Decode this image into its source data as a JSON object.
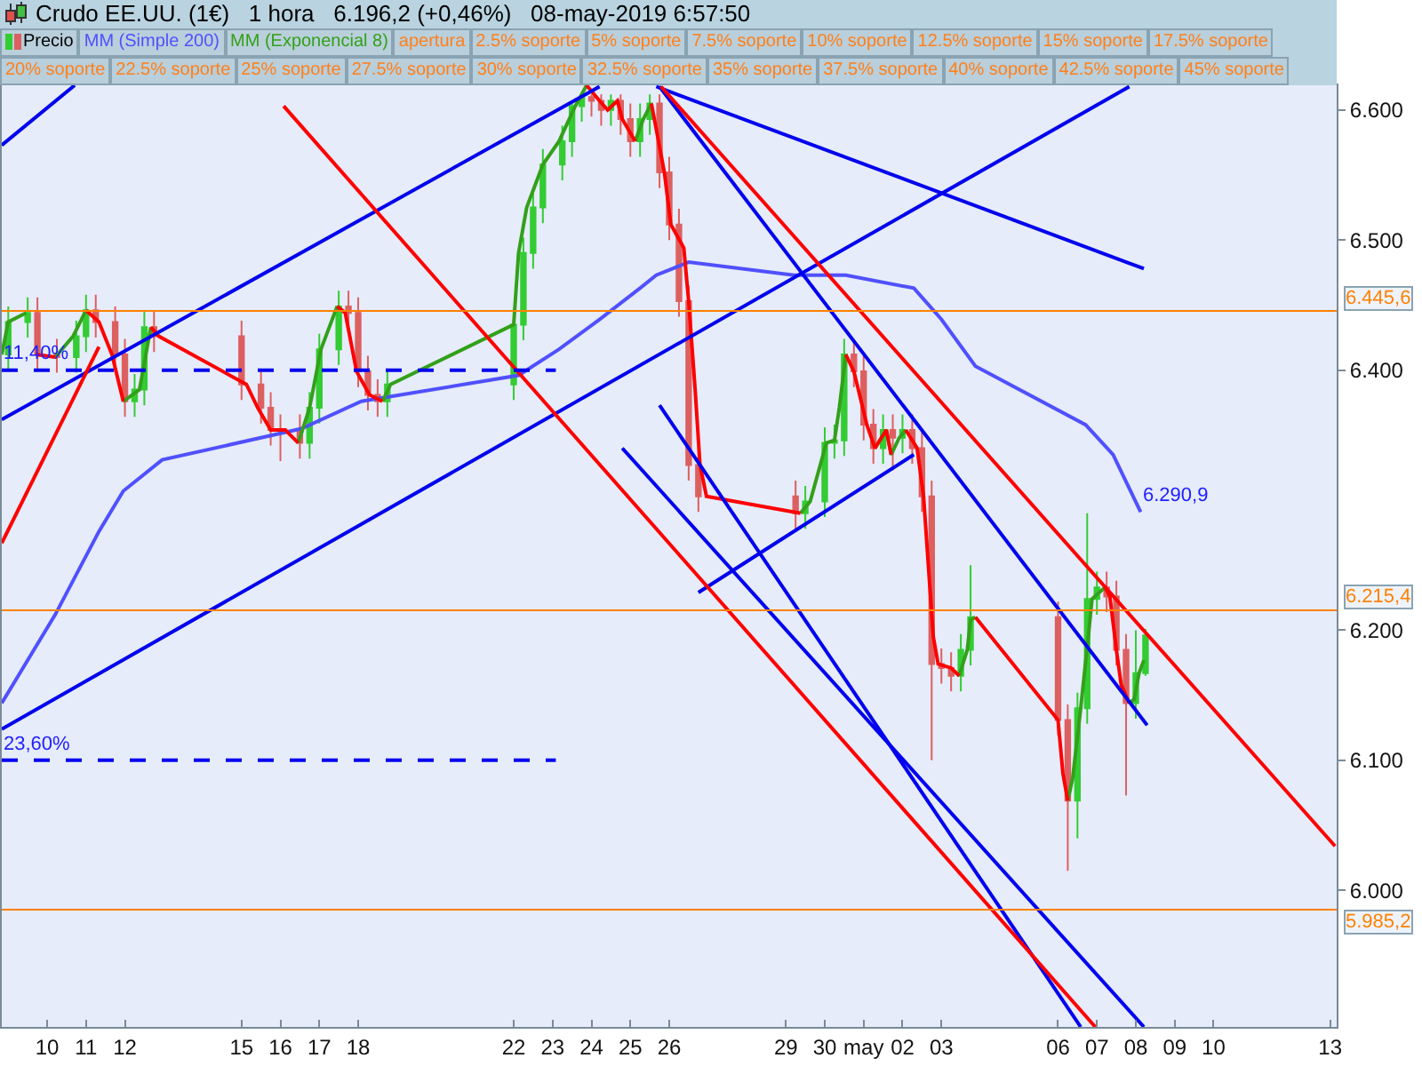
{
  "chart_data": {
    "type": "candlestick",
    "title": "Crudo EE.UU. (1€)   1 hora   6.196,2 (+0,46%)   08-may-2019 6:57:50",
    "legend": "top left",
    "xlim": [
      "2019-04-08T20:00",
      "2019-05-13T04:00"
    ],
    "xticks": [
      {
        "value": "2019-04-10",
        "label": "10"
      },
      {
        "value": "2019-04-11",
        "label": "11"
      },
      {
        "value": "2019-04-12",
        "label": "12"
      },
      {
        "value": "2019-04-15",
        "label": "15"
      },
      {
        "value": "2019-04-16",
        "label": "16"
      },
      {
        "value": "2019-04-17",
        "label": "17"
      },
      {
        "value": "2019-04-18",
        "label": "18"
      },
      {
        "value": "2019-04-22",
        "label": "22"
      },
      {
        "value": "2019-04-23",
        "label": "23"
      },
      {
        "value": "2019-04-24",
        "label": "24"
      },
      {
        "value": "2019-04-25",
        "label": "25"
      },
      {
        "value": "2019-04-26",
        "label": "26"
      },
      {
        "value": "2019-04-29",
        "label": "29"
      },
      {
        "value": "2019-04-30",
        "label": "30"
      },
      {
        "value": "2019-05-01",
        "label": "may"
      },
      {
        "value": "2019-05-02",
        "label": "02"
      },
      {
        "value": "2019-05-03",
        "label": "03"
      },
      {
        "value": "2019-05-06",
        "label": "06"
      },
      {
        "value": "2019-05-07",
        "label": "07"
      },
      {
        "value": "2019-05-08",
        "label": "08"
      },
      {
        "value": "2019-05-09",
        "label": "09"
      },
      {
        "value": "2019-05-10",
        "label": "10"
      },
      {
        "value": "2019-05-13",
        "label": "13"
      }
    ],
    "ylim": [
      5.895,
      6.619
    ],
    "yticks": [
      {
        "value": 6.0,
        "label": "6.000"
      },
      {
        "value": 6.1,
        "label": "6.100"
      },
      {
        "value": 6.2,
        "label": "6.200"
      },
      {
        "value": 6.4,
        "label": "6.400"
      },
      {
        "value": 6.5,
        "label": "6.500"
      },
      {
        "value": 6.6,
        "label": "6.600"
      }
    ],
    "series": [
      {
        "name": "Precio",
        "colors": [
          "#33cc33",
          "#33cc33",
          "#dd6060",
          "#dd6060",
          "#33cc33",
          "#33cc33",
          "#dd6060",
          "#dd6060",
          "#dd6060",
          "#33cc33",
          "#33cc33",
          "#dd6060",
          "#dd6060",
          "#dd6060",
          "#dd6060",
          "#dd6060",
          "#dd6060",
          "#33cc33",
          "#33cc33",
          "#33cc33",
          "#dd6060",
          "#dd6060",
          "#dd6060",
          "#dd6060",
          "#33cc33",
          "#33cc33",
          "#33cc33",
          "#33cc33",
          "#33cc33",
          "#33cc33",
          "#33cc33",
          "#33cc33",
          "#dd6060",
          "#dd6060",
          "#33cc33",
          "#dd6060",
          "#dd6060",
          "#33cc33",
          "#33cc33",
          "#dd6060",
          "#dd6060",
          "#dd6060",
          "#dd6060",
          "#dd6060",
          "#dd6060",
          "#33cc33",
          "#33cc33",
          "#33cc33",
          "#33cc33",
          "#dd6060",
          "#dd6060",
          "#dd6060",
          "#33cc33",
          "#dd6060",
          "#33cc33",
          "#dd6060",
          "#dd6060",
          "#dd6060",
          "#dd6060",
          "#dd6060",
          "#33cc33",
          "#33cc33",
          "#dd6060",
          "#dd6060",
          "#33cc33",
          "#33cc33",
          "#33cc33",
          "#dd6060",
          "#dd6060",
          "#dd6060",
          "#33cc33",
          "#33cc33"
        ],
        "x": [
          "2019-04-09T00:00",
          "2019-04-09T12:00",
          "2019-04-09T18:00",
          "2019-04-10T06:00",
          "2019-04-10T18:00",
          "2019-04-11T00:00",
          "2019-04-11T06:00",
          "2019-04-11T18:00",
          "2019-04-12T00:00",
          "2019-04-12T06:00",
          "2019-04-12T12:00",
          "2019-04-12T18:00",
          "2019-04-15T00:00",
          "2019-04-15T12:00",
          "2019-04-15T18:00",
          "2019-04-16T00:00",
          "2019-04-16T12:00",
          "2019-04-16T18:00",
          "2019-04-17T00:00",
          "2019-04-17T12:00",
          "2019-04-17T18:00",
          "2019-04-18T00:00",
          "2019-04-18T06:00",
          "2019-04-18T12:00",
          "2019-04-18T18:00",
          "2019-04-22T00:00",
          "2019-04-22T06:00",
          "2019-04-22T12:00",
          "2019-04-22T18:00",
          "2019-04-23T06:00",
          "2019-04-23T12:00",
          "2019-04-23T18:00",
          "2019-04-24T00:00",
          "2019-04-24T06:00",
          "2019-04-24T12:00",
          "2019-04-24T18:00",
          "2019-04-25T00:00",
          "2019-04-25T06:00",
          "2019-04-25T12:00",
          "2019-04-25T18:00",
          "2019-04-26T00:00",
          "2019-04-26T06:00",
          "2019-04-26T12:00",
          "2019-04-26T18:00",
          "2019-04-29T06:00",
          "2019-04-29T12:00",
          "2019-04-30T00:00",
          "2019-04-30T06:00",
          "2019-04-30T12:00",
          "2019-04-30T18:00",
          "2019-05-01T00:00",
          "2019-05-01T06:00",
          "2019-05-01T12:00",
          "2019-05-01T18:00",
          "2019-05-02T00:00",
          "2019-05-02T06:00",
          "2019-05-02T12:00",
          "2019-05-02T18:00",
          "2019-05-03T00:00",
          "2019-05-03T06:00",
          "2019-05-03T12:00",
          "2019-05-03T18:00",
          "2019-05-06T00:00",
          "2019-05-06T06:00",
          "2019-05-06T12:00",
          "2019-05-06T18:00",
          "2019-05-07T00:00",
          "2019-05-07T06:00",
          "2019-05-07T12:00",
          "2019-05-07T18:00",
          "2019-05-08T00:00",
          "2019-05-08T06:00"
        ],
        "ohlc": [
          [
            6.412,
            6.449,
            6.4,
            6.437
          ],
          [
            6.437,
            6.456,
            6.425,
            6.444
          ],
          [
            6.444,
            6.456,
            6.4,
            6.412
          ],
          [
            6.412,
            6.424,
            6.398,
            6.41
          ],
          [
            6.41,
            6.438,
            6.398,
            6.426
          ],
          [
            6.426,
            6.458,
            6.414,
            6.446
          ],
          [
            6.446,
            6.458,
            6.425,
            6.437
          ],
          [
            6.437,
            6.449,
            6.4,
            6.412
          ],
          [
            6.412,
            6.424,
            6.364,
            6.376
          ],
          [
            6.376,
            6.397,
            6.364,
            6.385
          ],
          [
            6.385,
            6.445,
            6.373,
            6.433
          ],
          [
            6.433,
            6.445,
            6.414,
            6.426
          ],
          [
            6.426,
            6.438,
            6.377,
            6.389
          ],
          [
            6.389,
            6.401,
            6.359,
            6.371
          ],
          [
            6.371,
            6.383,
            6.342,
            6.354
          ],
          [
            6.354,
            6.366,
            6.33,
            6.354
          ],
          [
            6.354,
            6.366,
            6.332,
            6.344
          ],
          [
            6.344,
            6.383,
            6.332,
            6.371
          ],
          [
            6.371,
            6.428,
            6.359,
            6.416
          ],
          [
            6.416,
            6.461,
            6.404,
            6.449
          ],
          [
            6.449,
            6.461,
            6.432,
            6.444
          ],
          [
            6.444,
            6.456,
            6.387,
            6.399
          ],
          [
            6.399,
            6.411,
            6.369,
            6.381
          ],
          [
            6.381,
            6.393,
            6.364,
            6.376
          ],
          [
            6.376,
            6.401,
            6.364,
            6.389
          ],
          [
            6.389,
            6.447,
            6.377,
            6.435
          ],
          [
            6.435,
            6.502,
            6.423,
            6.49
          ],
          [
            6.49,
            6.537,
            6.478,
            6.525
          ],
          [
            6.525,
            6.57,
            6.513,
            6.558
          ],
          [
            6.558,
            6.588,
            6.546,
            6.576
          ],
          [
            6.576,
            6.605,
            6.564,
            6.603
          ],
          [
            6.603,
            6.612,
            6.591,
            6.61
          ],
          [
            6.61,
            6.612,
            6.595,
            6.607
          ],
          [
            6.607,
            6.612,
            6.588,
            6.6
          ],
          [
            6.6,
            6.612,
            6.588,
            6.607
          ],
          [
            6.607,
            6.612,
            6.581,
            6.593
          ],
          [
            6.593,
            6.605,
            6.564,
            6.576
          ],
          [
            6.576,
            6.605,
            6.564,
            6.593
          ],
          [
            6.593,
            6.612,
            6.581,
            6.605
          ],
          [
            6.605,
            6.612,
            6.54,
            6.552
          ],
          [
            6.552,
            6.564,
            6.5,
            6.512
          ],
          [
            6.512,
            6.524,
            6.441,
            6.453
          ],
          [
            6.453,
            6.465,
            6.315,
            6.327
          ],
          [
            6.327,
            6.339,
            6.291,
            6.303
          ],
          [
            6.303,
            6.315,
            6.278,
            6.29
          ],
          [
            6.29,
            6.311,
            6.278,
            6.299
          ],
          [
            6.299,
            6.356,
            6.287,
            6.344
          ],
          [
            6.344,
            6.358,
            6.332,
            6.346
          ],
          [
            6.346,
            6.424,
            6.334,
            6.412
          ],
          [
            6.412,
            6.424,
            6.387,
            6.399
          ],
          [
            6.399,
            6.411,
            6.346,
            6.358
          ],
          [
            6.358,
            6.37,
            6.328,
            6.34
          ],
          [
            6.34,
            6.366,
            6.328,
            6.354
          ],
          [
            6.354,
            6.366,
            6.323,
            6.348
          ],
          [
            6.348,
            6.366,
            6.336,
            6.354
          ],
          [
            6.354,
            6.366,
            6.328,
            6.34
          ],
          [
            6.34,
            6.352,
            6.291,
            6.303
          ],
          [
            6.303,
            6.315,
            6.1,
            6.174
          ],
          [
            6.174,
            6.186,
            6.159,
            6.171
          ],
          [
            6.171,
            6.183,
            6.153,
            6.165
          ],
          [
            6.165,
            6.197,
            6.153,
            6.185
          ],
          [
            6.185,
            6.25,
            6.173,
            6.21
          ],
          [
            6.21,
            6.222,
            6.119,
            6.131
          ],
          [
            6.131,
            6.143,
            6.015,
            6.069
          ],
          [
            6.069,
            6.152,
            6.04,
            6.14
          ],
          [
            6.14,
            6.29,
            6.128,
            6.224
          ],
          [
            6.224,
            6.245,
            6.212,
            6.233
          ],
          [
            6.233,
            6.245,
            6.214,
            6.226
          ],
          [
            6.226,
            6.238,
            6.173,
            6.185
          ],
          [
            6.185,
            6.197,
            6.073,
            6.144
          ],
          [
            6.144,
            6.2,
            6.132,
            6.167
          ],
          [
            6.167,
            6.201,
            6.165,
            6.196
          ]
        ]
      },
      {
        "name": "MM (Simple 200)",
        "type": "line",
        "color": "#5050ff",
        "x": [
          "2019-04-08T20:00",
          "2019-04-10T05:00",
          "2019-04-11T08:00",
          "2019-04-11T23:00",
          "2019-04-12T23:00",
          "2019-04-16T13:00",
          "2019-04-18T02:00",
          "2019-04-22T03:00",
          "2019-04-23T04:00",
          "2019-04-24T05:00",
          "2019-04-25T06:00",
          "2019-04-25T16:00",
          "2019-04-26T12:00",
          "2019-04-29T05:00",
          "2019-04-30T13:00",
          "2019-05-02T07:00",
          "2019-05-03T00:00",
          "2019-05-03T21:00",
          "2019-05-06T17:00",
          "2019-05-07T10:00",
          "2019-05-08T03:00"
        ],
        "values": [
          6.144,
          6.212,
          6.276,
          6.307,
          6.331,
          6.355,
          6.376,
          6.396,
          6.416,
          6.439,
          6.463,
          6.473,
          6.483,
          6.473,
          6.473,
          6.463,
          6.439,
          6.403,
          6.358,
          6.335,
          6.2909
        ]
      },
      {
        "name": "MM (Exponencial 8)",
        "type": "line",
        "color": "#33a01a",
        "x": [
          "2019-04-08T20:00",
          "2019-04-09T00:00",
          "2019-04-09T11:00",
          "2019-04-09T17:00",
          "2019-04-10T05:00",
          "2019-04-10T16:00",
          "2019-04-11T00:00",
          "2019-04-11T08:00",
          "2019-04-11T16:00",
          "2019-04-11T23:00",
          "2019-04-12T09:00",
          "2019-04-12T16:00",
          "2019-04-12T21:00",
          "2019-04-15T03:00",
          "2019-04-15T10:00",
          "2019-04-15T18:00",
          "2019-04-16T03:00",
          "2019-04-16T11:00",
          "2019-04-16T18:00",
          "2019-04-17T01:00",
          "2019-04-17T11:00",
          "2019-04-17T16:00",
          "2019-04-17T23:00",
          "2019-04-18T07:00",
          "2019-04-18T15:00",
          "2019-04-18T20:00",
          "2019-04-22T00:00",
          "2019-04-22T03:00",
          "2019-04-22T08:00",
          "2019-04-22T18:00",
          "2019-04-23T04:00",
          "2019-04-23T14:00",
          "2019-04-23T21:00",
          "2019-04-24T05:00",
          "2019-04-24T19:00",
          "2019-04-25T03:00",
          "2019-04-25T08:00",
          "2019-04-25T13:00",
          "2019-04-25T21:00",
          "2019-04-26T01:00",
          "2019-04-26T09:00",
          "2019-04-26T12:00",
          "2019-04-26T16:00",
          "2019-04-26T19:00",
          "2019-04-26T23:00",
          "2019-04-29T09:00",
          "2019-04-29T15:00",
          "2019-04-30T01:00",
          "2019-04-30T06:00",
          "2019-04-30T09:00",
          "2019-04-30T13:00",
          "2019-04-30T18:00",
          "2019-05-01T02:00",
          "2019-05-01T07:00",
          "2019-05-01T14:00",
          "2019-05-01T17:00",
          "2019-05-01T22:00",
          "2019-05-02T02:00",
          "2019-05-02T09:00",
          "2019-05-02T13:00",
          "2019-05-02T19:00",
          "2019-05-02T22:00",
          "2019-05-03T06:00",
          "2019-05-03T11:00",
          "2019-05-03T16:00",
          "2019-05-03T18:00",
          "2019-05-03T21:00",
          "2019-05-06T00:00",
          "2019-05-06T03:00",
          "2019-05-06T06:00",
          "2019-05-06T09:00",
          "2019-05-06T14:00",
          "2019-05-06T19:00",
          "2019-05-06T21:00",
          "2019-05-07T05:00",
          "2019-05-07T08:00",
          "2019-05-07T12:00",
          "2019-05-07T15:00",
          "2019-05-07T20:00",
          "2019-05-07T23:00",
          "2019-05-08T02:00",
          "2019-05-08T05:00"
        ],
        "values": [
          6.412,
          6.437,
          6.444,
          null,
          6.41,
          6.426,
          6.446,
          null,
          null,
          6.376,
          6.385,
          6.433,
          null,
          null,
          null,
          null,
          null,
          6.344,
          6.371,
          6.416,
          6.449,
          null,
          null,
          null,
          6.376,
          6.389,
          6.435,
          6.49,
          6.525,
          6.558,
          6.576,
          6.603,
          6.619,
          null,
          null,
          6.576,
          6.593,
          6.605,
          null,
          null,
          null,
          null,
          null,
          null,
          null,
          6.29,
          6.299,
          6.344,
          6.346,
          6.371,
          6.412,
          null,
          null,
          6.34,
          6.354,
          6.335,
          6.348,
          6.354,
          null,
          null,
          null,
          null,
          null,
          6.165,
          6.185,
          6.208,
          6.21,
          null,
          null,
          6.069,
          6.086,
          6.14,
          6.199,
          6.224,
          6.233,
          null,
          null,
          null,
          6.144,
          6.147,
          6.167,
          6.177
        ]
      },
      {
        "type": "line",
        "color": "#ff0000",
        "x": [
          "2019-04-09T17:00",
          "2019-04-10T05:00",
          "2019-04-10T16:00",
          "2019-04-11T00:00",
          "2019-04-11T08:00",
          "2019-04-11T16:00",
          "2019-04-11T23:00",
          "2019-04-12T09:00",
          "2019-04-12T16:00",
          "2019-04-12T21:00",
          "2019-04-15T03:00",
          "2019-04-15T10:00",
          "2019-04-15T18:00",
          "2019-04-16T03:00",
          "2019-04-16T11:00",
          "2019-04-16T18:00",
          "2019-04-17T01:00",
          "2019-04-17T11:00",
          "2019-04-17T16:00",
          "2019-04-17T23:00",
          "2019-04-18T07:00",
          "2019-04-18T15:00",
          "2019-04-18T20:00",
          "2019-04-22T00:00",
          "2019-04-22T03:00",
          "2019-04-22T08:00",
          "2019-04-22T18:00",
          "2019-04-23T04:00",
          "2019-04-23T14:00",
          "2019-04-23T21:00",
          "2019-04-24T05:00",
          "2019-04-24T10:00",
          "2019-04-24T16:00",
          "2019-04-24T19:00",
          "2019-04-25T03:00",
          "2019-04-25T08:00",
          "2019-04-25T13:00",
          "2019-04-25T21:00",
          "2019-04-26T01:00",
          "2019-04-26T09:00",
          "2019-04-26T12:00",
          "2019-04-26T16:00",
          "2019-04-26T19:00",
          "2019-04-26T23:00",
          "2019-04-29T09:00",
          "2019-04-29T15:00",
          "2019-04-30T01:00",
          "2019-04-30T06:00",
          "2019-04-30T09:00",
          "2019-04-30T13:00",
          "2019-04-30T18:00",
          "2019-05-01T02:00",
          "2019-05-01T07:00",
          "2019-05-01T14:00",
          "2019-05-01T17:00",
          "2019-05-01T22:00",
          "2019-05-02T02:00",
          "2019-05-02T09:00",
          "2019-05-02T13:00",
          "2019-05-02T19:00",
          "2019-05-02T22:00",
          "2019-05-03T06:00",
          "2019-05-03T11:00",
          "2019-05-03T16:00",
          "2019-05-03T18:00",
          "2019-05-03T21:00",
          "2019-05-06T00:00",
          "2019-05-06T03:00",
          "2019-05-06T06:00",
          "2019-05-06T09:00",
          "2019-05-06T14:00",
          "2019-05-06T19:00",
          "2019-05-06T21:00",
          "2019-05-07T05:00",
          "2019-05-07T08:00",
          "2019-05-07T12:00",
          "2019-05-07T15:00",
          "2019-05-07T20:00"
        ],
        "values": [
          6.412,
          6.41,
          null,
          6.446,
          6.437,
          6.412,
          6.376,
          null,
          6.433,
          6.426,
          6.389,
          6.371,
          6.354,
          6.354,
          6.344,
          null,
          null,
          6.449,
          6.444,
          6.399,
          6.381,
          6.376,
          null,
          null,
          null,
          null,
          null,
          null,
          null,
          6.619,
          6.607,
          6.6,
          6.607,
          6.593,
          6.576,
          null,
          6.605,
          6.552,
          6.512,
          6.494,
          6.453,
          6.385,
          6.327,
          6.303,
          6.29,
          null,
          null,
          null,
          null,
          6.412,
          6.399,
          6.358,
          6.34,
          6.354,
          6.335,
          null,
          6.354,
          6.34,
          6.303,
          6.195,
          6.174,
          6.171,
          6.165,
          null,
          null,
          6.21,
          6.131,
          6.09,
          6.069,
          null,
          null,
          null,
          null,
          6.233,
          6.226,
          6.185,
          6.158,
          6.144
        ]
      },
      {
        "type": "line",
        "color": "#0000ee",
        "x": [
          "2019-04-08T20:00",
          "2019-04-10T17:00"
        ],
        "values": [
          6.573,
          6.619
        ]
      },
      {
        "type": "line",
        "color": "#0000ee",
        "x": [
          "2019-04-08T20:00",
          "2019-04-24T05:00"
        ],
        "values": [
          6.362,
          6.618
        ]
      },
      {
        "type": "line",
        "color": "#0000ee",
        "x": [
          "2019-04-08T20:00",
          "2019-05-07T20:00"
        ],
        "values": [
          6.124,
          6.618
        ]
      },
      {
        "type": "line",
        "color": "#0000ee",
        "x": [
          "2019-04-25T16:00",
          "2019-05-08T05:00"
        ],
        "values": [
          6.618,
          6.478
        ]
      },
      {
        "type": "line",
        "color": "#0000ee",
        "x": [
          "2019-04-25T18:00",
          "2019-05-08T07:00"
        ],
        "values": [
          6.618,
          6.127
        ]
      },
      {
        "type": "line",
        "color": "#0000ee",
        "x": [
          "2019-04-25T18:00",
          "2019-05-06T14:00"
        ],
        "values": [
          6.373,
          5.895
        ]
      },
      {
        "type": "line",
        "color": "#0000ee",
        "x": [
          "2019-04-24T19:00",
          "2019-05-08T05:00"
        ],
        "values": [
          6.34,
          5.895
        ]
      },
      {
        "type": "line",
        "color": "#0000ee",
        "x": [
          "2019-04-26T18:00",
          "2019-05-02T07:00"
        ],
        "values": [
          6.229,
          6.335
        ]
      },
      {
        "type": "line",
        "color": "#ff0000",
        "x": [
          "2019-04-08T20:00",
          "2019-04-11T08:00"
        ],
        "values": [
          6.267,
          6.418
        ]
      },
      {
        "type": "line",
        "color": "#ff0000",
        "x": [
          "2019-04-16T02:00",
          "2019-05-06T23:00"
        ],
        "values": [
          6.603,
          5.895
        ]
      },
      {
        "type": "line",
        "color": "#ff0000",
        "x": [
          "2019-04-25T19:00",
          "2019-05-13T03:00"
        ],
        "values": [
          6.618,
          6.034
        ]
      },
      {
        "type": "line",
        "color": "#0000ee",
        "line_style": "dashed",
        "x": [
          "2019-04-08T20:00",
          "2019-04-23T02:00"
        ],
        "values": [
          6.4,
          6.4
        ]
      },
      {
        "type": "line",
        "color": "#0000ee",
        "line_style": "dashed",
        "x": [
          "2019-04-08T20:00",
          "2019-04-23T02:00"
        ],
        "values": [
          6.1,
          6.1
        ]
      }
    ],
    "ref_lines": [
      {
        "axis": "y",
        "value": 6.4456,
        "label": "6.445,6",
        "color": "#ff8000"
      },
      {
        "axis": "y",
        "value": 6.2154,
        "label": "6.215,4",
        "color": "#ff8000"
      },
      {
        "axis": "y",
        "value": 5.9852,
        "label": "5.985,2",
        "color": "#ff8000"
      }
    ],
    "annotations": [
      {
        "text": "11,40%",
        "x": "2019-04-08T20:00",
        "y": 6.4
      },
      {
        "text": "23,60%",
        "x": "2019-04-08T20:00",
        "y": 6.1
      },
      {
        "text": "6.290,9",
        "x": "2019-05-08T03:00",
        "y": 6.2909
      },
      "apertura",
      "2.5% soporte",
      "5% soporte",
      "7.5% soporte",
      "10% soporte",
      "12.5% soporte",
      "15% soporte",
      "17.5% soporte",
      "20% soporte",
      "22.5% soporte",
      "25% soporte",
      "27.5% soporte",
      "30% soporte",
      "32.5% soporte",
      "35% soporte",
      "37.5% soporte",
      "40% soporte",
      "42.5% soporte",
      "45% soporte"
    ]
  }
}
